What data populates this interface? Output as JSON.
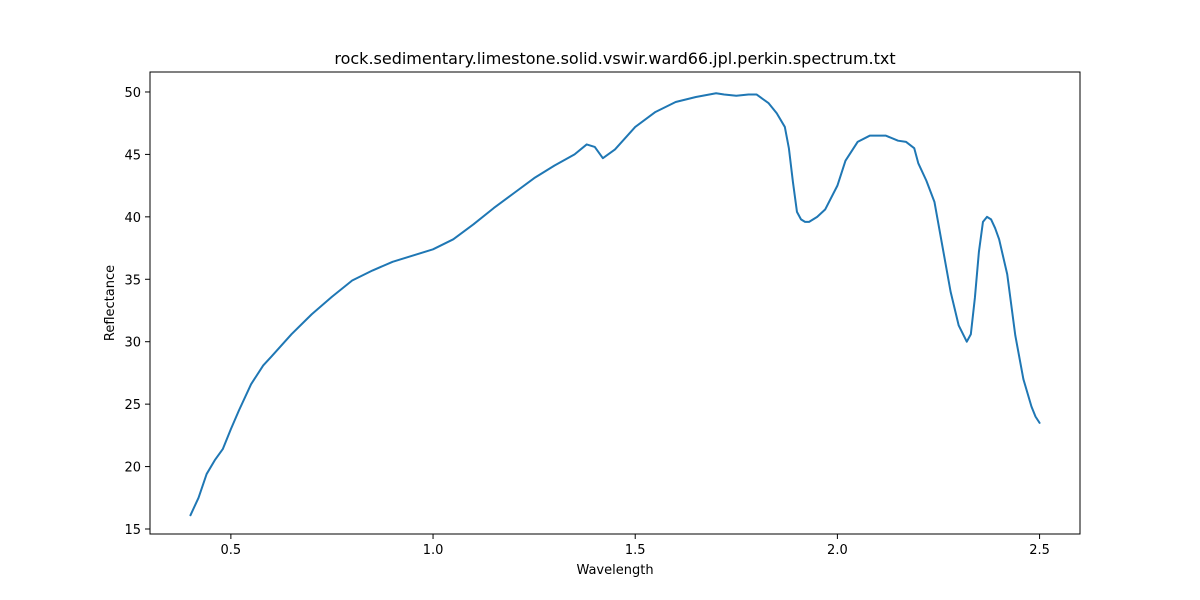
{
  "chart_data": {
    "type": "line",
    "title": "rock.sedimentary.limestone.solid.vswir.ward66.jpl.perkin.spectrum.txt",
    "xlabel": "Wavelength",
    "ylabel": "Reflectance",
    "xlim": [
      0.3,
      2.6
    ],
    "ylim": [
      14.6,
      51.6
    ],
    "xticks": [
      0.5,
      1.0,
      1.5,
      2.0,
      2.5
    ],
    "xtick_labels": [
      "0.5",
      "1.0",
      "1.5",
      "2.0",
      "2.5"
    ],
    "yticks": [
      15,
      20,
      25,
      30,
      35,
      40,
      45,
      50
    ],
    "ytick_labels": [
      "15",
      "20",
      "25",
      "30",
      "35",
      "40",
      "45",
      "50"
    ],
    "grid": false,
    "line_color": "#1f77b4",
    "series": [
      {
        "x": [
          0.4,
          0.42,
          0.44,
          0.46,
          0.48,
          0.5,
          0.52,
          0.55,
          0.58,
          0.6,
          0.65,
          0.7,
          0.75,
          0.8,
          0.85,
          0.9,
          0.95,
          1.0,
          1.05,
          1.1,
          1.15,
          1.2,
          1.25,
          1.3,
          1.35,
          1.38,
          1.4,
          1.42,
          1.45,
          1.5,
          1.55,
          1.6,
          1.65,
          1.7,
          1.72,
          1.75,
          1.78,
          1.8,
          1.83,
          1.85,
          1.87,
          1.88,
          1.89,
          1.9,
          1.91,
          1.92,
          1.93,
          1.95,
          1.97,
          2.0,
          2.02,
          2.05,
          2.08,
          2.1,
          2.12,
          2.15,
          2.17,
          2.19,
          2.2,
          2.22,
          2.24,
          2.26,
          2.28,
          2.3,
          2.32,
          2.33,
          2.34,
          2.35,
          2.36,
          2.37,
          2.38,
          2.39,
          2.4,
          2.42,
          2.44,
          2.46,
          2.48,
          2.49,
          2.5
        ],
        "y": [
          16.1,
          17.5,
          19.4,
          20.5,
          21.4,
          23.0,
          24.5,
          26.6,
          28.1,
          28.8,
          30.6,
          32.2,
          33.6,
          34.9,
          35.7,
          36.4,
          36.9,
          37.4,
          38.2,
          39.4,
          40.7,
          41.9,
          43.1,
          44.1,
          45.0,
          45.8,
          45.6,
          44.7,
          45.4,
          47.2,
          48.4,
          49.2,
          49.6,
          49.9,
          49.8,
          49.7,
          49.8,
          49.8,
          49.1,
          48.3,
          47.2,
          45.5,
          42.8,
          40.4,
          39.8,
          39.6,
          39.6,
          40.0,
          40.6,
          42.5,
          44.5,
          46.0,
          46.5,
          46.5,
          46.5,
          46.1,
          46.0,
          45.5,
          44.3,
          42.9,
          41.2,
          37.6,
          34.0,
          31.3,
          30.0,
          30.6,
          33.5,
          37.2,
          39.6,
          40.0,
          39.8,
          39.1,
          38.2,
          35.4,
          30.5,
          27.0,
          24.8,
          24.0,
          23.5
        ]
      }
    ]
  }
}
